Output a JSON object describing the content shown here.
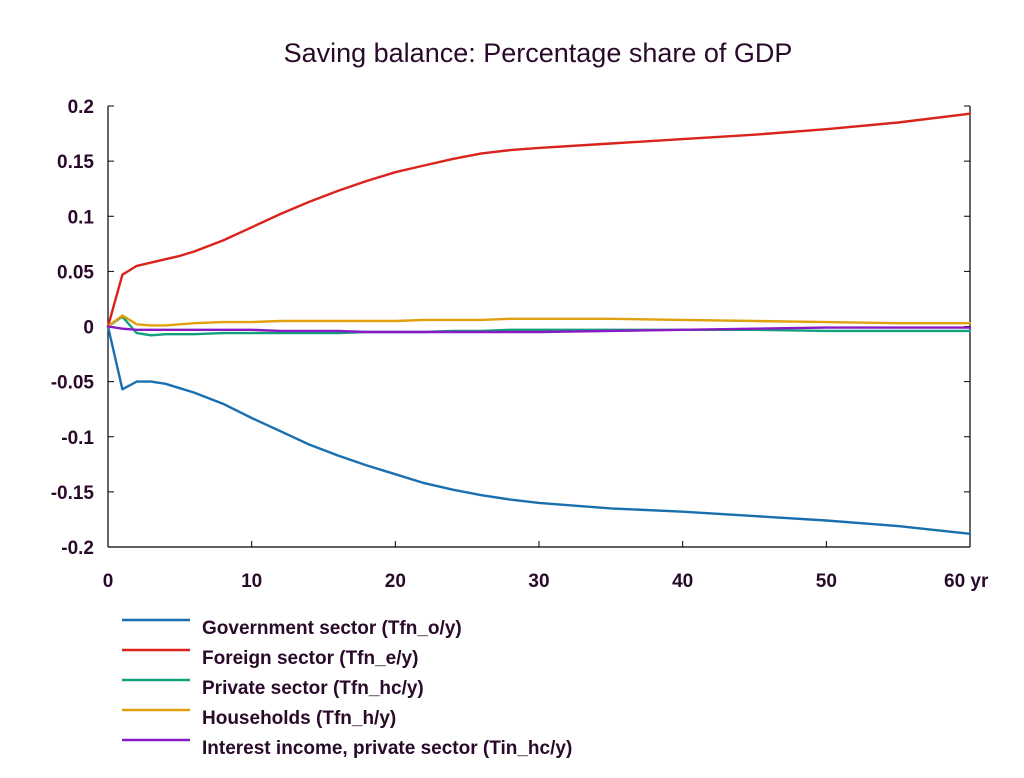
{
  "chart_data": {
    "type": "line",
    "title": "Saving balance: Percentage share of GDP",
    "xlabel": "",
    "ylabel": "",
    "x_unit": "yr",
    "xlim": [
      0,
      60
    ],
    "ylim": [
      -0.2,
      0.2
    ],
    "x_ticks": [
      0,
      10,
      20,
      30,
      40,
      50,
      60
    ],
    "x_tick_labels": [
      "0",
      "10",
      "20",
      "30",
      "40",
      "50",
      "60 yr"
    ],
    "y_ticks": [
      -0.2,
      -0.15,
      -0.1,
      -0.05,
      0,
      0.05,
      0.1,
      0.15,
      0.2
    ],
    "y_tick_labels": [
      "-0.2",
      "-0.15",
      "-0.1",
      "-0.05",
      "0",
      "0.05",
      "0.1",
      "0.15",
      "0.2"
    ],
    "grid": false,
    "legend_position": "bottom-left",
    "x": [
      0,
      1,
      2,
      3,
      4,
      5,
      6,
      8,
      10,
      12,
      14,
      16,
      18,
      20,
      22,
      24,
      26,
      28,
      30,
      35,
      40,
      45,
      50,
      55,
      60
    ],
    "series": [
      {
        "name": "Government sector (Tfn_o/y)",
        "color": "#1a6fae",
        "values": [
          0,
          -0.057,
          -0.05,
          -0.05,
          -0.052,
          -0.056,
          -0.06,
          -0.07,
          -0.083,
          -0.095,
          -0.107,
          -0.117,
          -0.126,
          -0.134,
          -0.142,
          -0.148,
          -0.153,
          -0.157,
          -0.16,
          -0.165,
          -0.168,
          -0.172,
          -0.176,
          -0.181,
          -0.188
        ]
      },
      {
        "name": "Foreign sector (Tfn_e/y)",
        "color": "#d9231c",
        "values": [
          0,
          0.047,
          0.055,
          0.058,
          0.061,
          0.064,
          0.068,
          0.078,
          0.09,
          0.102,
          0.113,
          0.123,
          0.132,
          0.14,
          0.146,
          0.152,
          0.157,
          0.16,
          0.162,
          0.166,
          0.17,
          0.174,
          0.179,
          0.185,
          0.193
        ]
      },
      {
        "name": "Private sector (Tfn_hc/y)",
        "color": "#13a07c",
        "values": [
          0,
          0.009,
          -0.006,
          -0.008,
          -0.007,
          -0.007,
          -0.007,
          -0.006,
          -0.006,
          -0.006,
          -0.006,
          -0.006,
          -0.005,
          -0.005,
          -0.005,
          -0.004,
          -0.004,
          -0.003,
          -0.003,
          -0.003,
          -0.003,
          -0.003,
          -0.004,
          -0.004,
          -0.004
        ]
      },
      {
        "name": "Households (Tfn_h/y)",
        "color": "#e0a010",
        "values": [
          0,
          0.01,
          0.002,
          0.001,
          0.001,
          0.002,
          0.003,
          0.004,
          0.004,
          0.005,
          0.005,
          0.005,
          0.005,
          0.005,
          0.006,
          0.006,
          0.006,
          0.007,
          0.007,
          0.007,
          0.006,
          0.005,
          0.004,
          0.003,
          0.003
        ]
      },
      {
        "name": "Interest income, private sector (Tin_hc/y)",
        "color": "#8a1ac4",
        "values": [
          0,
          -0.002,
          -0.003,
          -0.003,
          -0.003,
          -0.003,
          -0.003,
          -0.003,
          -0.003,
          -0.004,
          -0.004,
          -0.004,
          -0.005,
          -0.005,
          -0.005,
          -0.005,
          -0.005,
          -0.005,
          -0.005,
          -0.004,
          -0.003,
          -0.002,
          -0.001,
          -0.001,
          -0.001
        ]
      }
    ]
  }
}
